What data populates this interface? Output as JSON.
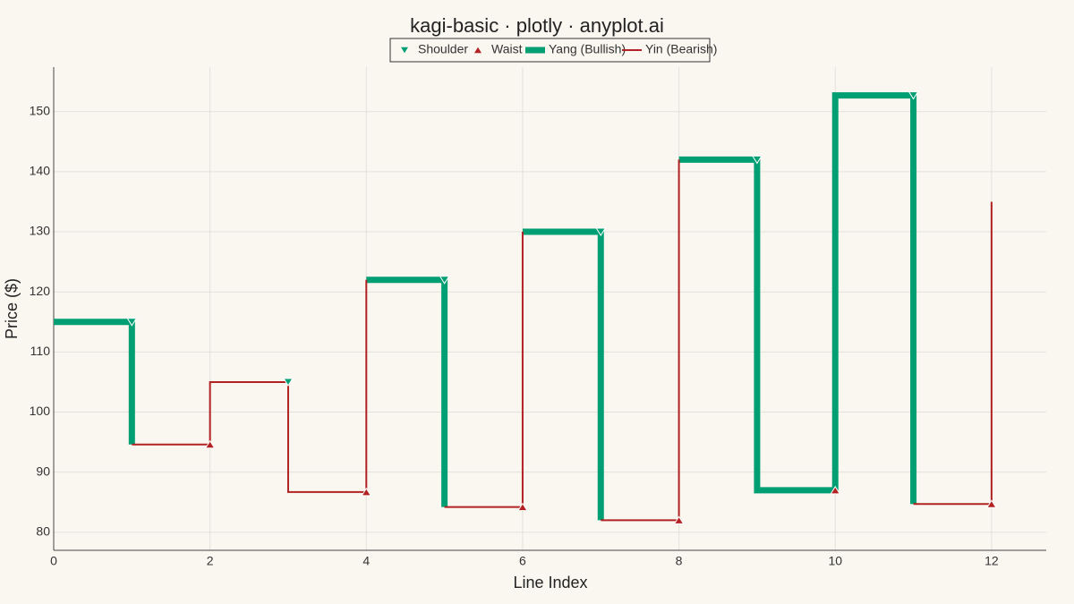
{
  "chart_data": {
    "type": "kagi",
    "title": "kagi-basic · plotly · anyplot.ai",
    "xlabel": "Line Index",
    "ylabel": "Price ($)",
    "xlim": [
      0,
      12.7
    ],
    "ylim": [
      77,
      157.4
    ],
    "xticks": [
      0,
      2,
      4,
      6,
      8,
      10,
      12
    ],
    "yticks": [
      80,
      90,
      100,
      110,
      120,
      130,
      140,
      150
    ],
    "grid": true,
    "series": [
      {
        "name": "Shoulder",
        "mode": "markers",
        "symbol": "triangle-down",
        "color": "#009e73",
        "x": [
          1,
          3,
          5,
          7,
          9,
          11
        ],
        "values": [
          115,
          105,
          122,
          130,
          142,
          152.7
        ]
      },
      {
        "name": "Waist",
        "mode": "markers",
        "symbol": "triangle-up",
        "color": "#b22222",
        "x": [
          2,
          4,
          6,
          8,
          10,
          12
        ],
        "values": [
          94.6,
          86.7,
          84.2,
          82,
          87,
          84.7
        ]
      },
      {
        "name": "Yang (Bullish)",
        "mode": "line",
        "width": 7,
        "color": "#009e73",
        "x": [
          0,
          1,
          1,
          null,
          4,
          5,
          5,
          null,
          6,
          7,
          7,
          null,
          8,
          9,
          9,
          10,
          10,
          11,
          11
        ],
        "values": [
          115,
          115,
          94.6,
          null,
          122,
          122,
          84.2,
          null,
          130,
          130,
          82,
          null,
          142,
          142,
          87,
          87,
          152.7,
          152.7,
          84.7
        ]
      },
      {
        "name": "Yin (Bearish)",
        "mode": "line",
        "width": 2,
        "color": "#b22222",
        "x": [
          1,
          2,
          2,
          3,
          3,
          4,
          4,
          null,
          5,
          6,
          6,
          null,
          7,
          8,
          8,
          null,
          11,
          12,
          12
        ],
        "values": [
          94.6,
          94.6,
          105,
          105,
          86.7,
          86.7,
          122,
          null,
          84.2,
          84.2,
          130,
          null,
          82,
          82,
          142,
          null,
          84.7,
          84.7,
          135
        ]
      }
    ]
  }
}
